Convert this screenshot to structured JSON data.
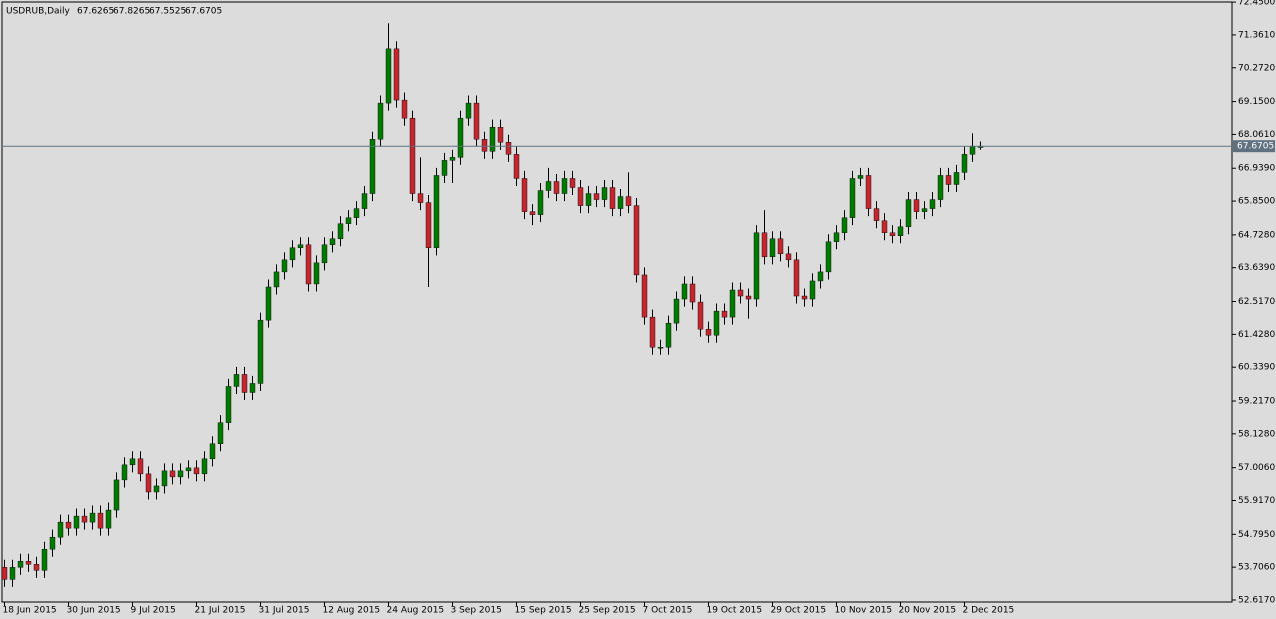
{
  "chart_data": {
    "type": "candlestick",
    "title": "USDRUB,Daily",
    "up_color": "#007a00",
    "down_color": "#c4262e",
    "last_price_color": "#5f7180",
    "categories": [
      "18 Jun 2015",
      null,
      null,
      null,
      null,
      null,
      null,
      null,
      "30 Jun 2015",
      null,
      null,
      null,
      null,
      null,
      null,
      null,
      "9 Jul 2015",
      null,
      null,
      null,
      null,
      null,
      null,
      null,
      "21 Jul 2015",
      null,
      null,
      null,
      null,
      null,
      null,
      null,
      "31 Jul 2015",
      null,
      null,
      null,
      null,
      null,
      null,
      null,
      "12 Aug 2015",
      null,
      null,
      null,
      null,
      null,
      null,
      null,
      "24 Aug 2015",
      null,
      null,
      null,
      null,
      null,
      null,
      null,
      "3 Sep 2015",
      null,
      null,
      null,
      null,
      null,
      null,
      null,
      "15 Sep 2015",
      null,
      null,
      null,
      null,
      null,
      null,
      null,
      "25 Sep 2015",
      null,
      null,
      null,
      null,
      null,
      null,
      null,
      "7 Oct 2015",
      null,
      null,
      null,
      null,
      null,
      null,
      null,
      "19 Oct 2015",
      null,
      null,
      null,
      null,
      null,
      null,
      null,
      "29 Oct 2015",
      null,
      null,
      null,
      null,
      null,
      null,
      null,
      "10 Nov 2015",
      null,
      null,
      null,
      null,
      null,
      null,
      null,
      "20 Nov 2015",
      null,
      null,
      null,
      null,
      null,
      null,
      null,
      "2 Dec 2015",
      null,
      null
    ],
    "open": [
      53.7,
      53.3,
      53.7,
      53.9,
      53.8,
      53.6,
      54.3,
      54.7,
      55.2,
      55.0,
      55.4,
      55.2,
      55.5,
      55.0,
      55.6,
      56.6,
      57.1,
      57.3,
      56.8,
      56.2,
      56.4,
      56.9,
      56.7,
      56.9,
      57.0,
      56.8,
      57.3,
      57.8,
      58.5,
      59.7,
      60.1,
      59.5,
      59.8,
      61.9,
      63.0,
      63.5,
      63.9,
      64.3,
      64.4,
      63.1,
      63.8,
      64.4,
      64.6,
      65.1,
      65.3,
      65.6,
      66.1,
      67.9,
      69.1,
      70.9,
      69.2,
      68.6,
      66.1,
      65.8,
      64.3,
      66.7,
      67.2,
      67.3,
      68.6,
      69.1,
      67.9,
      67.5,
      68.3,
      67.8,
      67.4,
      66.6,
      65.5,
      65.4,
      66.2,
      66.5,
      66.1,
      66.6,
      66.3,
      65.7,
      66.1,
      65.9,
      66.3,
      65.6,
      66.0,
      65.7,
      63.4,
      62.0,
      61.0,
      61.0,
      61.8,
      62.6,
      63.1,
      62.5,
      61.6,
      61.4,
      62.2,
      62.0,
      62.9,
      62.7,
      62.6,
      64.8,
      64.0,
      64.6,
      64.1,
      63.9,
      62.7,
      62.6,
      63.2,
      63.5,
      64.5,
      64.8,
      65.3,
      66.6,
      66.7,
      65.6,
      65.2,
      64.8,
      64.7,
      65.0,
      65.9,
      65.5,
      65.6,
      65.9,
      66.7,
      66.4,
      66.8,
      67.4,
      67.6265
    ],
    "high": [
      53.95,
      53.95,
      54.15,
      54.15,
      54.05,
      54.55,
      54.95,
      55.45,
      55.45,
      55.65,
      55.65,
      55.75,
      55.75,
      55.85,
      56.85,
      57.35,
      57.55,
      57.55,
      57.05,
      56.65,
      57.15,
      57.15,
      57.15,
      57.25,
      57.25,
      57.55,
      58.05,
      58.75,
      59.95,
      60.35,
      60.35,
      60.05,
      62.15,
      63.25,
      63.75,
      64.15,
      64.55,
      64.65,
      64.65,
      64.05,
      64.65,
      64.85,
      65.35,
      65.55,
      65.85,
      66.35,
      68.15,
      69.35,
      71.75,
      71.15,
      69.45,
      68.85,
      67.3,
      66.05,
      66.95,
      67.45,
      67.55,
      68.85,
      69.35,
      69.35,
      68.15,
      68.55,
      68.55,
      68.05,
      67.65,
      66.85,
      65.75,
      66.45,
      66.95,
      66.75,
      66.85,
      66.85,
      66.55,
      66.35,
      66.35,
      66.55,
      66.55,
      66.25,
      66.8,
      65.95,
      63.65,
      62.25,
      61.25,
      62.05,
      62.85,
      63.35,
      63.35,
      62.75,
      61.85,
      62.45,
      62.45,
      63.15,
      63.15,
      62.95,
      65.05,
      65.55,
      64.85,
      64.85,
      64.35,
      64.15,
      62.95,
      63.45,
      63.75,
      64.75,
      65.05,
      65.55,
      66.85,
      66.95,
      66.95,
      65.85,
      65.45,
      65.05,
      65.25,
      66.15,
      66.15,
      65.85,
      66.15,
      66.95,
      66.95,
      67.05,
      67.65,
      68.1,
      67.8265
    ],
    "low": [
      53.05,
      53.05,
      53.45,
      53.55,
      53.35,
      53.35,
      54.05,
      54.45,
      54.75,
      54.75,
      54.95,
      54.95,
      54.75,
      54.75,
      55.35,
      56.35,
      56.85,
      56.55,
      55.95,
      55.95,
      56.15,
      56.45,
      56.45,
      56.65,
      56.55,
      56.55,
      57.05,
      57.55,
      58.25,
      59.45,
      59.25,
      59.25,
      59.55,
      61.65,
      62.75,
      63.25,
      63.65,
      64.05,
      62.85,
      62.85,
      63.55,
      64.15,
      64.35,
      64.85,
      65.05,
      65.35,
      65.85,
      67.65,
      68.85,
      68.95,
      68.35,
      65.85,
      65.55,
      63.0,
      64.05,
      66.45,
      66.45,
      67.05,
      68.35,
      67.65,
      67.25,
      67.25,
      67.55,
      67.15,
      66.35,
      65.25,
      65.05,
      65.15,
      65.95,
      65.85,
      65.85,
      66.05,
      65.45,
      65.45,
      65.65,
      65.65,
      65.35,
      65.35,
      65.45,
      63.15,
      61.75,
      60.75,
      60.75,
      60.75,
      61.55,
      62.35,
      62.25,
      61.35,
      61.15,
      61.15,
      61.75,
      61.75,
      62.45,
      61.95,
      62.35,
      63.75,
      63.75,
      63.85,
      63.65,
      62.45,
      62.35,
      62.35,
      62.95,
      63.25,
      64.25,
      64.55,
      65.05,
      66.35,
      65.35,
      64.95,
      64.55,
      64.45,
      64.45,
      64.75,
      65.25,
      65.25,
      65.35,
      65.65,
      66.15,
      66.15,
      66.55,
      67.15,
      67.5525
    ],
    "close": [
      53.3,
      53.7,
      53.9,
      53.8,
      53.6,
      54.3,
      54.7,
      55.2,
      55.0,
      55.4,
      55.2,
      55.5,
      55.0,
      55.6,
      56.6,
      57.1,
      57.3,
      56.8,
      56.2,
      56.4,
      56.9,
      56.7,
      56.9,
      57.0,
      56.8,
      57.3,
      57.8,
      58.5,
      59.7,
      60.1,
      59.5,
      59.8,
      61.9,
      63.0,
      63.5,
      63.9,
      64.3,
      64.4,
      63.1,
      63.8,
      64.4,
      64.6,
      65.1,
      65.3,
      65.6,
      66.1,
      67.9,
      69.1,
      70.9,
      69.2,
      68.6,
      66.1,
      65.8,
      64.3,
      66.7,
      67.2,
      67.3,
      68.6,
      69.1,
      67.9,
      67.5,
      68.3,
      67.8,
      67.4,
      66.6,
      65.5,
      65.4,
      66.2,
      66.5,
      66.1,
      66.6,
      66.3,
      65.7,
      66.1,
      65.9,
      66.3,
      65.6,
      66.0,
      65.7,
      63.4,
      62.0,
      61.0,
      61.0,
      61.8,
      62.6,
      63.1,
      62.5,
      61.6,
      61.4,
      62.2,
      62.0,
      62.9,
      62.7,
      62.6,
      64.8,
      64.0,
      64.6,
      64.1,
      63.9,
      62.7,
      62.6,
      63.2,
      63.5,
      64.5,
      64.8,
      65.3,
      66.6,
      66.7,
      65.6,
      65.2,
      64.8,
      64.7,
      65.0,
      65.9,
      65.5,
      65.6,
      65.9,
      66.7,
      66.4,
      66.8,
      67.4,
      67.65,
      67.6705
    ],
    "ylim": [
      52.55,
      72.52
    ],
    "yticks": [
      {
        "value": 72.45,
        "label": "72.4500"
      },
      {
        "value": 71.361,
        "label": "71.3610"
      },
      {
        "value": 70.272,
        "label": "70.2720"
      },
      {
        "value": 69.15,
        "label": "69.1500"
      },
      {
        "value": 68.061,
        "label": "68.0610"
      },
      {
        "value": 66.939,
        "label": "66.9390"
      },
      {
        "value": 65.85,
        "label": "65.8500"
      },
      {
        "value": 64.728,
        "label": "64.7280"
      },
      {
        "value": 63.639,
        "label": "63.6390"
      },
      {
        "value": 62.517,
        "label": "62.5170"
      },
      {
        "value": 61.428,
        "label": "61.4280"
      },
      {
        "value": 60.339,
        "label": "60.3390"
      },
      {
        "value": 59.217,
        "label": "59.2170"
      },
      {
        "value": 58.128,
        "label": "58.1280"
      },
      {
        "value": 57.006,
        "label": "57.0060"
      },
      {
        "value": 55.917,
        "label": "55.9170"
      },
      {
        "value": 54.795,
        "label": "54.7950"
      },
      {
        "value": 53.706,
        "label": "53.7060"
      },
      {
        "value": 52.617,
        "label": "52.6170"
      }
    ]
  }
}
